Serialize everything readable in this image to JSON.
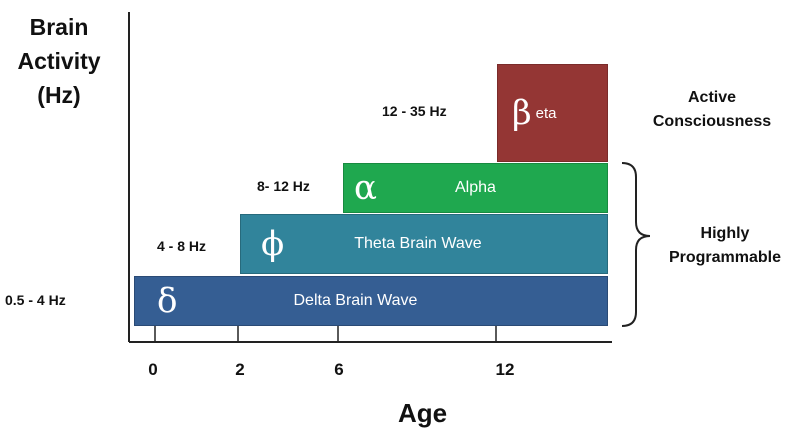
{
  "y_axis": {
    "label_line1": "Brain",
    "label_line2": "Activity",
    "label_line3": "(Hz)"
  },
  "x_axis": {
    "label": "Age",
    "ticks": [
      "0",
      "2",
      "6",
      "12"
    ]
  },
  "bands": [
    {
      "symbol": "δ",
      "name": "Delta Brain Wave",
      "range": "0.5 - 4 Hz",
      "color": "#355e93"
    },
    {
      "symbol": "ϕ",
      "name": "Theta Brain Wave",
      "range": "4 - 8 Hz",
      "color": "#31849b"
    },
    {
      "symbol": "α",
      "name": "Alpha",
      "range": "8- 12 Hz",
      "color": "#1fa84f"
    },
    {
      "symbol": "β",
      "name": "eta",
      "range": "12 - 35 Hz",
      "color": "#943634"
    }
  ],
  "annotations": {
    "active_line1": "Active",
    "active_line2": "Consciousness",
    "programmable_line1": "Highly",
    "programmable_line2": "Programmable"
  }
}
